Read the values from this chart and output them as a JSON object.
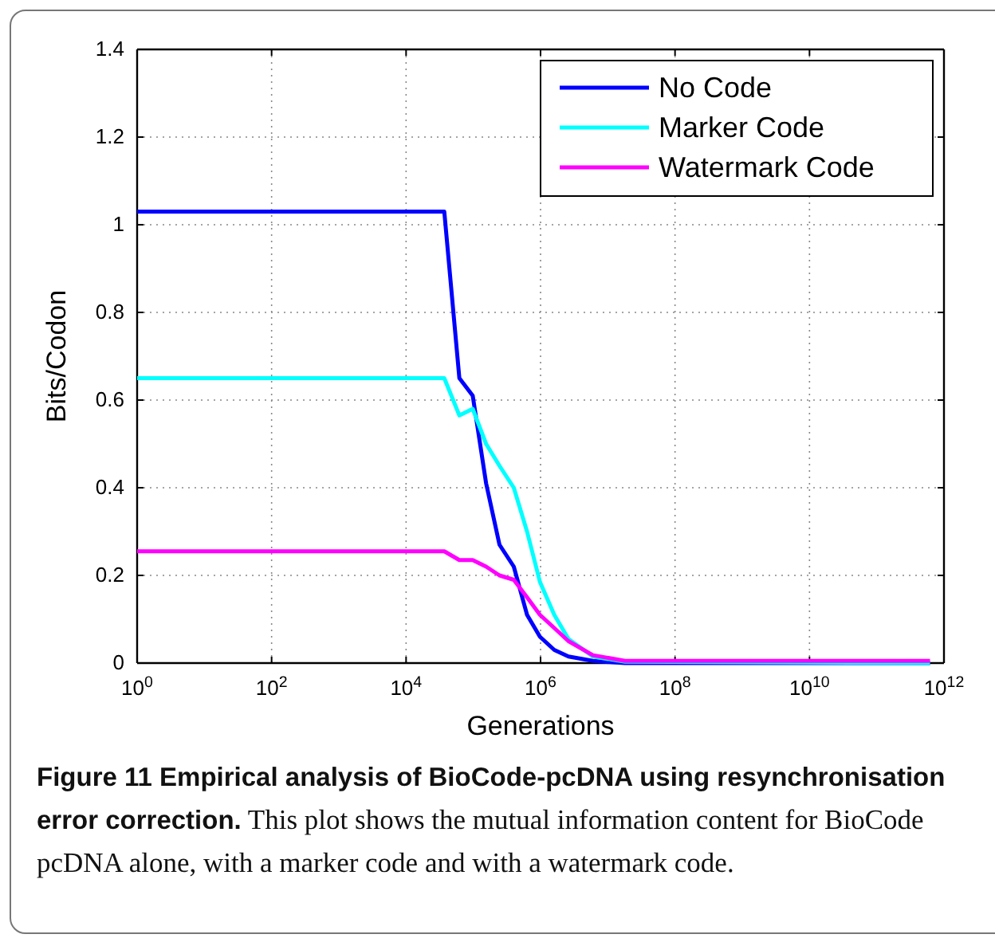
{
  "chart_data": {
    "type": "line",
    "title": "Figure 11 Empirical analysis of BioCode-pcDNA using resynchronisation error correction.",
    "annotations": [
      "This plot shows the mutual information content for BioCode pcDNA alone, with a marker code and with a watermark code."
    ],
    "xlabel": "Generations",
    "ylabel": "Bits/Codon",
    "log": "x",
    "x": [
      1,
      37000,
      62000,
      98000,
      155000,
      245000,
      400000,
      630000,
      980000,
      1600000,
      2600000,
      6000000,
      18000000,
      620000000000
    ],
    "series": [
      {
        "name": "No Code",
        "color": "#0000ff",
        "values": [
          1.03,
          1.03,
          0.65,
          0.61,
          0.41,
          0.27,
          0.22,
          0.11,
          0.06,
          0.03,
          0.015,
          0.005,
          0,
          0
        ]
      },
      {
        "name": "Marker Code",
        "color": "#00ffff",
        "values": [
          0.65,
          0.65,
          0.565,
          0.58,
          0.5,
          0.45,
          0.4,
          0.3,
          0.185,
          0.11,
          0.055,
          0.015,
          0.003,
          0
        ]
      },
      {
        "name": "Watermark Code",
        "color": "#ff00ff",
        "values": [
          0.255,
          0.255,
          0.235,
          0.235,
          0.22,
          0.2,
          0.19,
          0.15,
          0.11,
          0.08,
          0.05,
          0.018,
          0.005,
          0.005
        ]
      }
    ],
    "xlim": [
      1,
      1000000000000
    ],
    "xticks": [
      {
        "value": 1,
        "label": "10$^{0}$"
      },
      {
        "value": 100,
        "label": "10$^{2}$"
      },
      {
        "value": 10000,
        "label": "10$^{4}$"
      },
      {
        "value": 1000000,
        "label": "10$^{6}$"
      },
      {
        "value": 100000000,
        "label": "10$^{8}$"
      },
      {
        "value": 10000000000,
        "label": "10$^{10}$"
      },
      {
        "value": 1000000000000,
        "label": "10$^{12}$"
      }
    ],
    "ylim": [
      0,
      1.4
    ],
    "yticks": [
      0,
      0.2,
      0.4,
      0.6,
      0.8,
      1,
      1.2,
      1.4
    ],
    "grid": true,
    "legend": "top right"
  }
}
